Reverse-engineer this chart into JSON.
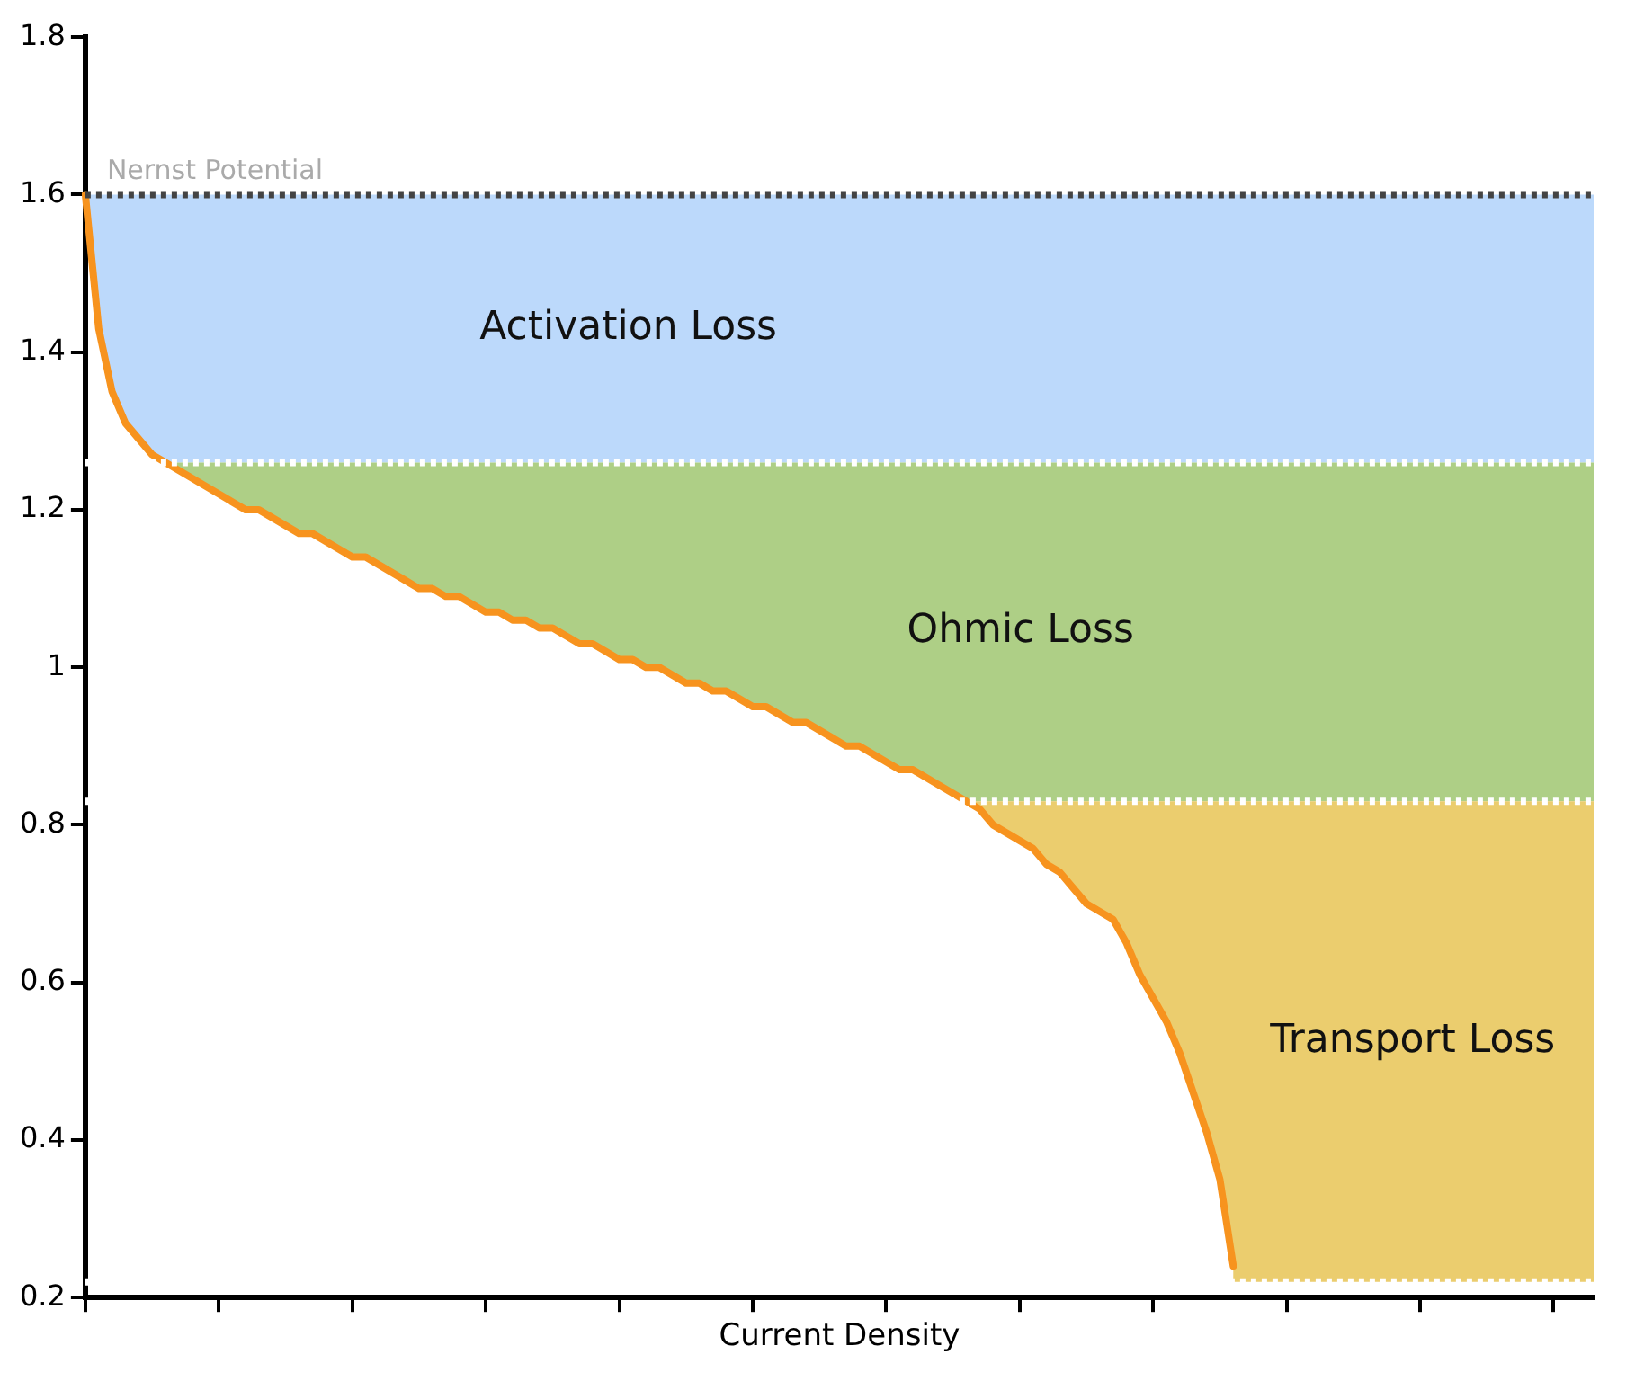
{
  "chart_data": {
    "type": "line",
    "xlabel": "Current Density",
    "categories": [
      null,
      null,
      null,
      null,
      null,
      null,
      null,
      null,
      null,
      null,
      null,
      null,
      null,
      null,
      null,
      null,
      null,
      null,
      null,
      null,
      null,
      null,
      null,
      null,
      null,
      null,
      null,
      null,
      null,
      null,
      null,
      null,
      null,
      null,
      null,
      null,
      null,
      null,
      null,
      null,
      null,
      null,
      null,
      null,
      null,
      null,
      null,
      null,
      null,
      null,
      null,
      null,
      null,
      null,
      null,
      null,
      null,
      null,
      null,
      null,
      null,
      null,
      null,
      null,
      null,
      null,
      null,
      null,
      null,
      null,
      null,
      null,
      null,
      null,
      null,
      null,
      null,
      null,
      null,
      null,
      null,
      null,
      null,
      null,
      null,
      null,
      null,
      null,
      null,
      null,
      null,
      null,
      null,
      null,
      null,
      null,
      null,
      null,
      null,
      null,
      null,
      null,
      null,
      null,
      null,
      null,
      null,
      null,
      null,
      null,
      null,
      null,
      null,
      null
    ],
    "ylim": [
      0.2,
      1.8
    ],
    "yticks": [
      0.2,
      0.4,
      0.6,
      0.8,
      1,
      1.2,
      1.4,
      1.6,
      1.8
    ],
    "tick_labels": "y",
    "grid": false,
    "legend": false,
    "marker": "none",
    "line_style": "solid",
    "series": [
      {
        "color": "#f7931e",
        "values": [
          1.6,
          1.43,
          1.35,
          1.31,
          1.29,
          1.27,
          1.26,
          1.25,
          1.24,
          1.23,
          1.22,
          1.21,
          1.2,
          1.2,
          1.19,
          1.18,
          1.17,
          1.17,
          1.16,
          1.15,
          1.14,
          1.14,
          1.13,
          1.12,
          1.11,
          1.1,
          1.1,
          1.09,
          1.09,
          1.08,
          1.07,
          1.07,
          1.06,
          1.06,
          1.05,
          1.05,
          1.04,
          1.03,
          1.03,
          1.02,
          1.01,
          1.01,
          1,
          1,
          0.99,
          0.98,
          0.98,
          0.97,
          0.97,
          0.96,
          0.95,
          0.95,
          0.94,
          0.93,
          0.93,
          0.92,
          0.91,
          0.9,
          0.9,
          0.89,
          0.88,
          0.87,
          0.87,
          0.86,
          0.85,
          0.84,
          0.83,
          0.82,
          0.8,
          0.79,
          0.78,
          0.77,
          0.75,
          0.74,
          0.72,
          0.7,
          0.69,
          0.68,
          0.65,
          0.61,
          0.58,
          0.55,
          0.51,
          0.46,
          0.41,
          0.35,
          0.24,
          null,
          null,
          null,
          null,
          null,
          null,
          null,
          null,
          null,
          null,
          null,
          null,
          null,
          null,
          null,
          null,
          null,
          null,
          null,
          null,
          null,
          null,
          null,
          null,
          null,
          null,
          null
        ]
      }
    ],
    "bands": [
      {
        "axis": "y",
        "from": 1.26,
        "to": 1.6,
        "label": "Activation Loss",
        "color": "#bcd9fb"
      },
      {
        "axis": "y",
        "from": 0.83,
        "to": 1.26,
        "label": "Ohmic Loss",
        "color": "#aecf86"
      },
      {
        "axis": "y",
        "from": 0.22,
        "to": 0.83,
        "label": "Transport Loss",
        "color": "#ebcd6e"
      }
    ],
    "ref_lines": [
      {
        "axis": "y",
        "value": 1.6,
        "label": "Nernst Potential",
        "color": "#444444",
        "line_style": "dotted"
      },
      {
        "axis": "y",
        "value": 1.26,
        "label": null,
        "color": "#ffffff",
        "line_style": "dotted"
      },
      {
        "axis": "y",
        "value": 0.83,
        "label": null,
        "color": "#ffffff",
        "line_style": "dotted"
      },
      {
        "axis": "y",
        "value": 0.22,
        "label": null,
        "color": "#ffffff",
        "line_style": "dotted"
      }
    ]
  }
}
